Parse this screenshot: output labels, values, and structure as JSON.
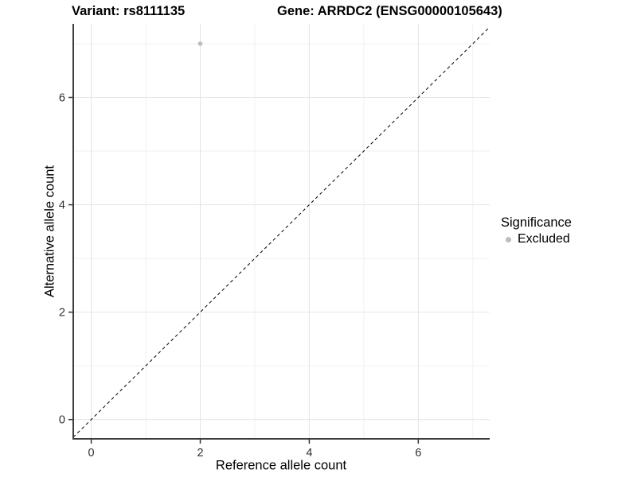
{
  "header": {
    "variant_title": "Variant: rs8111135",
    "gene_title": "Gene: ARRDC2 (ENSG00000105643)"
  },
  "legend": {
    "title": "Significance",
    "items": [
      {
        "label": "Excluded",
        "color": "#bdbdbd"
      }
    ]
  },
  "chart_data": {
    "type": "scatter",
    "title": "Variant: rs8111135 | Gene: ARRDC2 (ENSG00000105643)",
    "xlabel": "Reference allele count",
    "ylabel": "Alternative allele count",
    "xlim": [
      -0.33,
      7.31
    ],
    "ylim": [
      -0.36,
      7.37
    ],
    "x_ticks": [
      0,
      2,
      4,
      6
    ],
    "y_ticks": [
      0,
      2,
      4,
      6
    ],
    "minor_breaks_x": [
      1,
      3,
      5,
      7
    ],
    "minor_breaks_y": [
      1,
      3,
      5,
      7
    ],
    "grid": true,
    "legend_position": "right",
    "series": [
      {
        "name": "Excluded",
        "points": [
          {
            "x": 2,
            "y": 7
          }
        ]
      }
    ],
    "reference_line": {
      "type": "identity",
      "equation": "y = x",
      "style": "dashed"
    },
    "colors": {
      "point": "#bdbdbd",
      "grid_major": "#e4e4e4",
      "grid_minor": "#f1f1f1",
      "axis_line": "#3d3d3d",
      "tick": "#333333",
      "tick_label": "#303030",
      "dashed_line": "#000000"
    }
  }
}
